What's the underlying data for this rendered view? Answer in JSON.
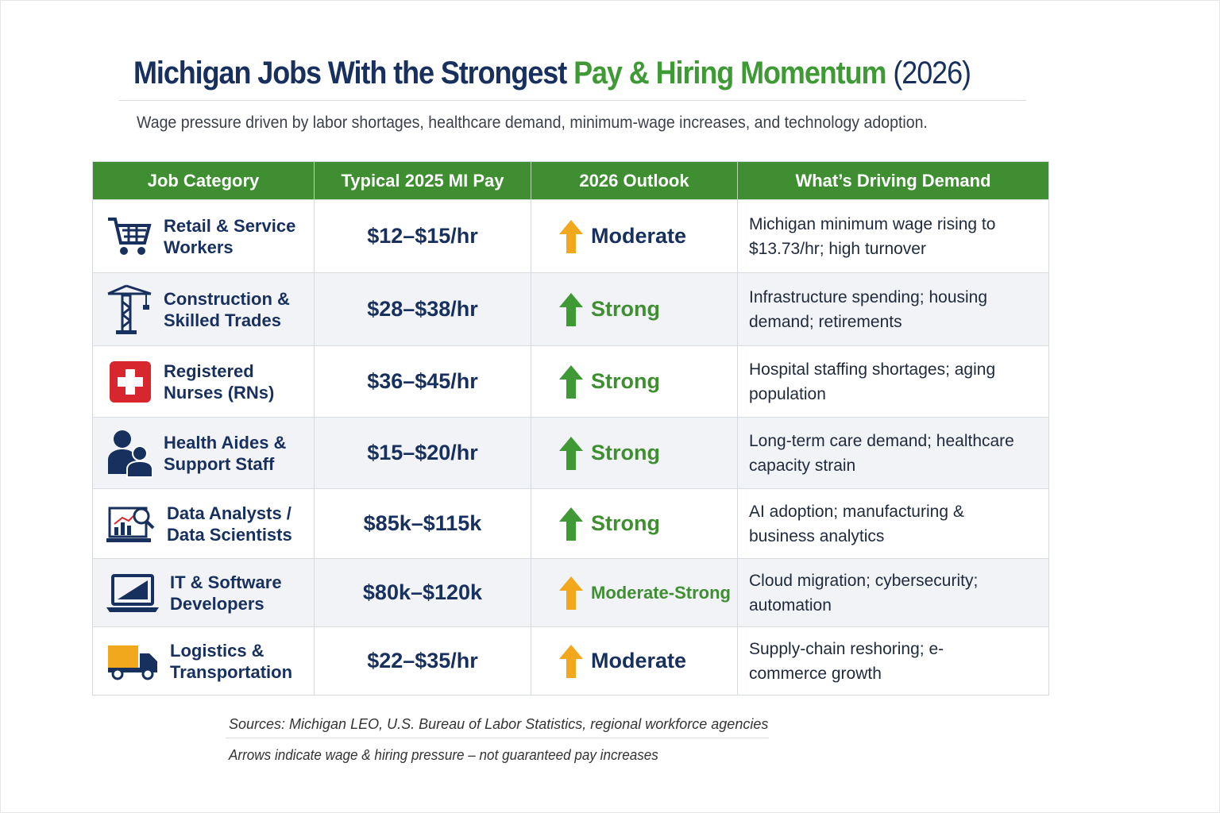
{
  "header": {
    "title_main": "Michigan Jobs With the Strongest",
    "title_accent": "Pay & Hiring Momentum",
    "title_year": "(2026)",
    "subtitle": "Wage pressure driven by labor shortages, healthcare demand, minimum-wage increases, and technology adoption."
  },
  "table": {
    "columns": [
      "Job Category",
      "Typical 2025 MI Pay",
      "2026 Outlook",
      "What’s Driving Demand"
    ],
    "rows": [
      [
        "Retail & Service Workers",
        "$12–$15/hr",
        "Moderate",
        "Michigan minimum wage rising to $13.73/hr; high turnover"
      ],
      [
        "Construction & Skilled Trades",
        "$28–$38/hr",
        "Strong",
        "Infrastructure spending; housing demand; retirements"
      ],
      [
        "Registered Nurses (RNs)",
        "$36–$45/hr",
        "Strong",
        "Hospital staffing shortages; aging population"
      ],
      [
        "Health Aides & Support Staff",
        "$15–$20/hr",
        "Strong",
        "Long-term care demand; healthcare capacity strain"
      ],
      [
        "Data Analysts / Data Scientists",
        "$85k–$115k",
        "Strong",
        "AI adoption; manufacturing & business analytics"
      ],
      [
        "IT & Software Developers",
        "$80k–$120k",
        "Moderate-Strong",
        "Cloud migration; cybersecurity; automation"
      ],
      [
        "Logistics & Transportation",
        "$22–$35/hr",
        "Moderate",
        "Supply-chain reshoring; e-commerce growth"
      ]
    ]
  },
  "footer": {
    "sources": "Sources: Michigan LEO, U.S. Bureau of Labor Statistics, regional workforce agencies",
    "note": "Arrows indicate wage & hiring pressure – not guaranteed pay increases"
  }
}
